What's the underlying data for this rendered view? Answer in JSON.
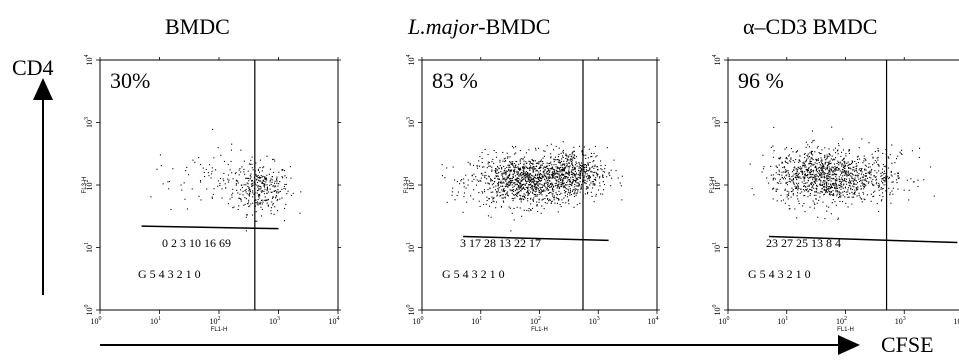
{
  "labels": {
    "y_axis": "CD4",
    "x_axis": "CFSE"
  },
  "chart_data": [
    {
      "type": "scatter",
      "title_pre": "",
      "title_italic": "",
      "title_post": "BMDC",
      "percent": "30%",
      "xlabel": "FL1-H",
      "ylabel": "FL3-H",
      "scale": "log",
      "xlim": [
        1,
        10000
      ],
      "ylim": [
        1,
        10000
      ],
      "x_ticks": [
        "10",
        "10",
        "10",
        "10",
        "10"
      ],
      "x_tick_exponents": [
        "0",
        "1",
        "2",
        "3",
        "4"
      ],
      "y_ticks": [
        "10",
        "10",
        "10",
        "10",
        "10"
      ],
      "y_tick_exponents": [
        "0",
        "1",
        "2",
        "3",
        "4"
      ],
      "gate_x": 400,
      "gate_line": {
        "x": [
          5,
          1000
        ],
        "y": [
          22,
          20
        ]
      },
      "generation_row_1": "0 2 3 10 16 69",
      "generation_row_2": "G 5 4 3 2 1 0",
      "clusters": [
        {
          "x": 500,
          "y": 90,
          "n": 300,
          "spread_x": 0.24,
          "spread_y": 0.2
        },
        {
          "x": 120,
          "y": 120,
          "n": 90,
          "spread_x": 0.45,
          "spread_y": 0.25
        },
        {
          "x": 15,
          "y": 130,
          "n": 12,
          "spread_x": 0.35,
          "spread_y": 0.2
        }
      ]
    },
    {
      "type": "scatter",
      "title_pre": "",
      "title_italic": "L.major",
      "title_post": "-BMDC",
      "percent": "83 %",
      "xlabel": "FL1-H",
      "ylabel": "FL3-H",
      "scale": "log",
      "xlim": [
        1,
        10000
      ],
      "ylim": [
        1,
        10000
      ],
      "x_ticks": [
        "10",
        "10",
        "10",
        "10",
        "10"
      ],
      "x_tick_exponents": [
        "0",
        "1",
        "2",
        "3",
        "4"
      ],
      "y_ticks": [
        "10",
        "10",
        "10",
        "10",
        "10"
      ],
      "y_tick_exponents": [
        "0",
        "1",
        "2",
        "3",
        "4"
      ],
      "gate_x": 550,
      "gate_line": {
        "x": [
          5,
          1500
        ],
        "y": [
          15,
          13
        ]
      },
      "generation_row_1": "3 17 28 13 22 17",
      "generation_row_2": "G 5 4 3 2 1 0",
      "clusters": [
        {
          "x": 60,
          "y": 120,
          "n": 1100,
          "spread_x": 0.48,
          "spread_y": 0.2
        },
        {
          "x": 350,
          "y": 160,
          "n": 450,
          "spread_x": 0.3,
          "spread_y": 0.2
        }
      ]
    },
    {
      "type": "scatter",
      "title_pre": "α–CD3 ",
      "title_italic": "",
      "title_post": "BMDC",
      "percent": "96 %",
      "xlabel": "FL1-H",
      "ylabel": "FL3-H",
      "scale": "log",
      "xlim": [
        1,
        10000
      ],
      "ylim": [
        1,
        10000
      ],
      "x_ticks": [
        "10",
        "10",
        "10",
        "10",
        "10"
      ],
      "x_tick_exponents": [
        "0",
        "1",
        "2",
        "3",
        "4"
      ],
      "y_ticks": [
        "10",
        "10",
        "10",
        "10",
        "10"
      ],
      "y_tick_exponents": [
        "0",
        "1",
        "2",
        "3",
        "4"
      ],
      "gate_x": 500,
      "gate_line": {
        "x": [
          5,
          8000
        ],
        "y": [
          15,
          12
        ]
      },
      "generation_row_1": "23 27 25 13 8 4",
      "generation_row_2": "G 5 4 3 2 1 0",
      "clusters": [
        {
          "x": 40,
          "y": 140,
          "n": 1000,
          "spread_x": 0.42,
          "spread_y": 0.22
        },
        {
          "x": 350,
          "y": 150,
          "n": 180,
          "spread_x": 0.3,
          "spread_y": 0.2
        }
      ]
    }
  ]
}
